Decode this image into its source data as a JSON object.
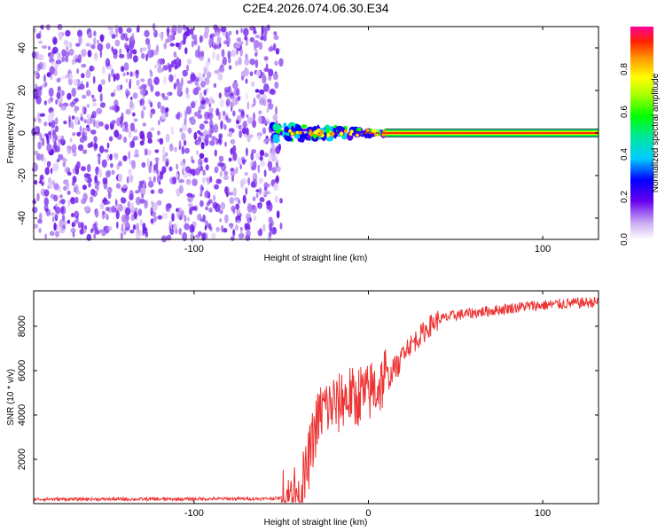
{
  "title": "C2E4.2026.074.06.30.E34",
  "chart_data": [
    {
      "type": "heatmap",
      "xlabel": "Height of straight line (km)",
      "ylabel": "Frequency (Hz)",
      "xlim": [
        -192,
        132
      ],
      "ylim": [
        -50,
        50
      ],
      "x_ticks": [
        -100,
        0,
        100
      ],
      "x_tick_labels": [
        "-100",
        "",
        "100"
      ],
      "y_ticks": [
        -40,
        -20,
        0,
        20,
        40
      ],
      "y_tick_labels": [
        "-40",
        "-20",
        "0",
        "20",
        "40"
      ],
      "regions": [
        {
          "name": "noise",
          "x_range": [
            -192,
            -50
          ],
          "freq_range": [
            -50,
            50
          ],
          "amplitude": 0.12
        },
        {
          "name": "transition",
          "x_range": [
            -55,
            10
          ],
          "freq_center": 0,
          "freq_halfwidth": 5,
          "amplitude": 0.9
        },
        {
          "name": "tone",
          "x_range": [
            10,
            132
          ],
          "freq_center": 0,
          "freq_halfwidth": 2,
          "amplitude": 1.0
        }
      ],
      "colorbar": {
        "label": "Normalized spectral amplitude",
        "range": [
          0,
          1
        ],
        "ticks": [
          "0.0",
          "0.2",
          "0.4",
          "0.6",
          "0.8"
        ],
        "tick_values": [
          0,
          0.2,
          0.4,
          0.6,
          0.8
        ]
      },
      "grid": false
    },
    {
      "type": "line",
      "xlabel": "Height of straight line (km)",
      "ylabel": "SNR (10 * v/v)",
      "xlim": [
        -192,
        132
      ],
      "ylim": [
        0,
        9600
      ],
      "x_ticks": [
        -100,
        0,
        100
      ],
      "x_tick_labels": [
        "-100",
        "0",
        "100"
      ],
      "y_ticks": [
        2000,
        4000,
        6000,
        8000
      ],
      "y_tick_labels": [
        "2000",
        "4000",
        "6000",
        "8000"
      ],
      "color": "#ee3333",
      "series": [
        {
          "x": [
            -192,
            -170,
            -150,
            -120,
            -100,
            -80,
            -60,
            -50,
            -45,
            -40,
            -36,
            -33,
            -30,
            -28,
            -25,
            -22,
            -20,
            -18,
            -15,
            -12,
            -10,
            -8,
            -5,
            -2,
            0,
            2,
            5,
            8,
            10,
            12,
            15,
            18,
            20,
            25,
            30,
            35,
            40,
            50,
            60,
            70,
            80,
            90,
            100,
            110,
            120,
            132
          ],
          "y": [
            200,
            200,
            200,
            200,
            210,
            220,
            220,
            250,
            350,
            600,
            1200,
            2500,
            3500,
            4000,
            4400,
            4300,
            4600,
            4300,
            4800,
            4700,
            5000,
            4500,
            5000,
            4900,
            4900,
            5200,
            5200,
            5500,
            6000,
            5600,
            6200,
            6200,
            7000,
            7200,
            7600,
            8000,
            8300,
            8500,
            8600,
            8700,
            8800,
            8900,
            8950,
            9000,
            9050,
            9100
          ]
        }
      ],
      "grid": false
    }
  ]
}
